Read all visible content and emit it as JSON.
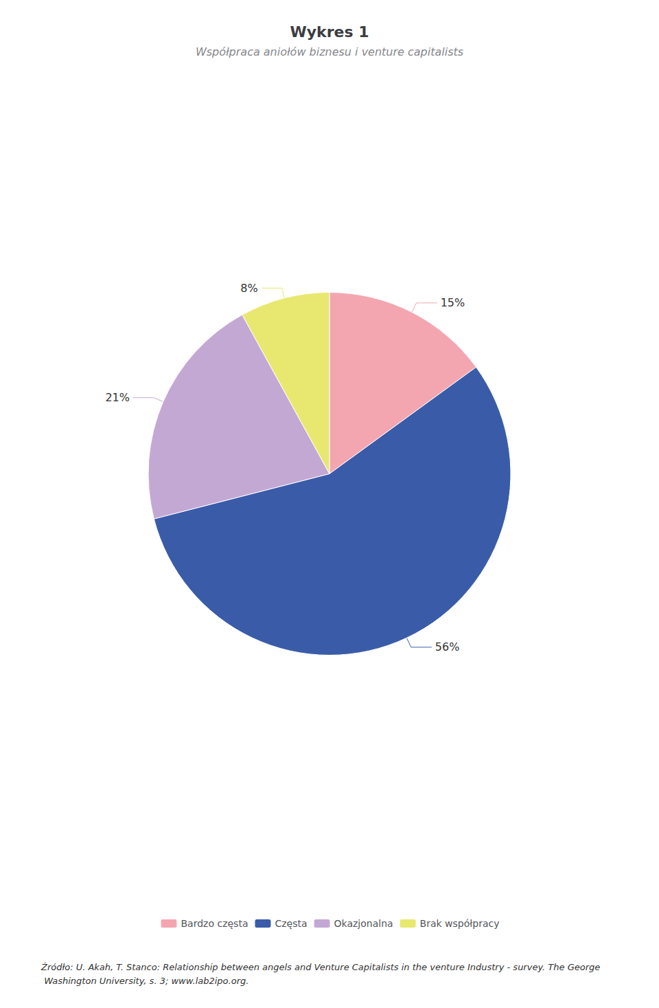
{
  "chart_data": {
    "type": "pie",
    "title": "Wykres 1",
    "subtitle": "Współpraca aniołów biznesu i venture capitalists",
    "categories": [
      "Bardzo częsta",
      "Częsta",
      "Okazjonalna",
      "Brak współpracy"
    ],
    "values": [
      15,
      56,
      21,
      8
    ],
    "value_labels": [
      "15%",
      "56%",
      "21%",
      "8%"
    ],
    "colors": [
      "#f4a6b0",
      "#3a5ca8",
      "#c4a8d4",
      "#e8e870"
    ],
    "data_labels": true,
    "legend": "bottom",
    "annotations": [
      "Źródło: U. Akah, T. Stanco: Relationship between angels and Venture Capitalists in the venture Industry - survey. The George Washington University, s. 3; www.lab2ipo.org."
    ]
  }
}
